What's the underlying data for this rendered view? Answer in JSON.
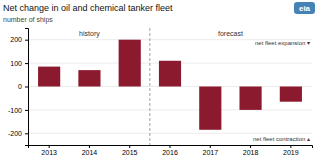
{
  "chart_data": {
    "type": "bar",
    "title": "Net change in oil and chemical tanker fleet",
    "ylabel": "number of ships",
    "categories": [
      2013,
      2014,
      2015,
      2016,
      2017,
      2018,
      2019
    ],
    "values": [
      85,
      70,
      200,
      110,
      -185,
      -100,
      -65
    ],
    "color": "#8B1A2E",
    "ylim": [
      -250,
      250
    ],
    "yticks": [
      -200,
      -100,
      0,
      100,
      200
    ],
    "grid": true,
    "forecast_from": 2016,
    "annotations": [
      "history",
      "forecast",
      "net fleet expansion  ▾",
      "net fleet contraction  ▴",
      "eia"
    ]
  }
}
